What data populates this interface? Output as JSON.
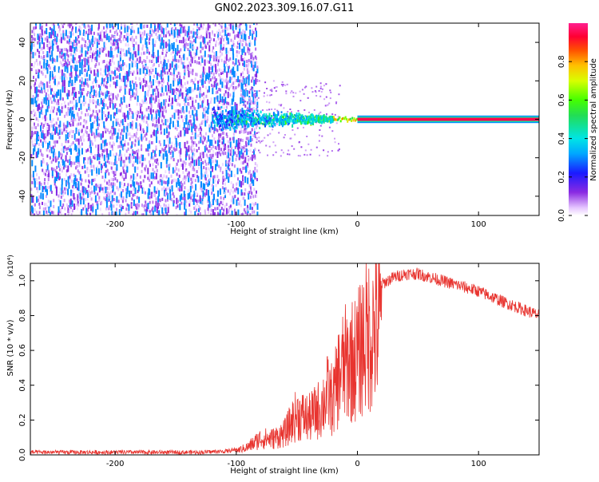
{
  "figure": {
    "title": "GN02.2023.309.16.07.G11"
  },
  "chart_data": [
    {
      "type": "heatmap",
      "title": "GN02.2023.309.16.07.G11",
      "xlabel": "Height of straight line (km)",
      "ylabel": "Frequency (Hz)",
      "xlim": [
        -270,
        150
      ],
      "ylim": [
        -50,
        50
      ],
      "x_ticks": [
        -200,
        -100,
        0,
        100
      ],
      "x_tick_labels": [
        "-200",
        "-100",
        "0",
        "100"
      ],
      "y_ticks": [
        -40,
        -20,
        0,
        20,
        40
      ],
      "y_tick_labels": [
        "-40",
        "-20",
        "0",
        "20",
        "40"
      ],
      "colorbar": {
        "label": "Normalized spectral amplitude",
        "range": [
          0,
          1
        ],
        "ticks": [
          0.0,
          0.2,
          0.4,
          0.6,
          0.8
        ],
        "tick_labels": [
          "0.0",
          "0.2",
          "0.4",
          "0.6",
          "0.8"
        ]
      },
      "regions": [
        {
          "x_range": [
            -270,
            -83
          ],
          "f_range": [
            -50,
            50
          ],
          "amplitude_range": [
            0.1,
            0.3
          ],
          "pattern": "broadband noise"
        },
        {
          "x_range": [
            -120,
            -20
          ],
          "f_center": 0,
          "f_halfwidth_range": [
            7,
            2
          ],
          "amplitude_range": [
            0.3,
            0.55
          ],
          "pattern": "converging signal"
        },
        {
          "x_range": [
            0,
            150
          ],
          "f_center": 0,
          "f_halfwidth": 1.5,
          "amplitude": 0.95,
          "pattern": "steady tone"
        }
      ],
      "grid": false
    },
    {
      "type": "line",
      "xlabel": "Height of straight line (km)",
      "ylabel": "SNR (10 * v/v)",
      "y_scale_label": "(x10⁴)",
      "xlim": [
        -270,
        150
      ],
      "ylim": [
        0,
        1.1
      ],
      "x_ticks": [
        -200,
        -100,
        0,
        100
      ],
      "x_tick_labels": [
        "-200",
        "-100",
        "0",
        "100"
      ],
      "y_ticks": [
        0.0,
        0.2,
        0.4,
        0.6,
        0.8,
        1.0
      ],
      "y_tick_labels": [
        "0.0",
        "0.2",
        "0.4",
        "0.6",
        "0.8",
        "1.0"
      ],
      "color": "#e8342f",
      "series": [
        {
          "x": [
            -270,
            -240,
            -200,
            -160,
            -130,
            -110,
            -100,
            -90,
            -80,
            -70,
            -60,
            -50,
            -40,
            -30,
            -25,
            -20,
            -15,
            -10,
            -5,
            0,
            5,
            10,
            20,
            30,
            40,
            50,
            60,
            80,
            100,
            120,
            150
          ],
          "y": [
            0.015,
            0.015,
            0.015,
            0.015,
            0.015,
            0.02,
            0.03,
            0.06,
            0.12,
            0.12,
            0.16,
            0.3,
            0.27,
            0.35,
            0.45,
            0.4,
            0.6,
            0.67,
            0.7,
            0.72,
            0.85,
            0.9,
            0.98,
            1.02,
            1.04,
            1.04,
            1.02,
            0.98,
            0.94,
            0.88,
            0.8
          ]
        }
      ],
      "grid": false
    }
  ]
}
